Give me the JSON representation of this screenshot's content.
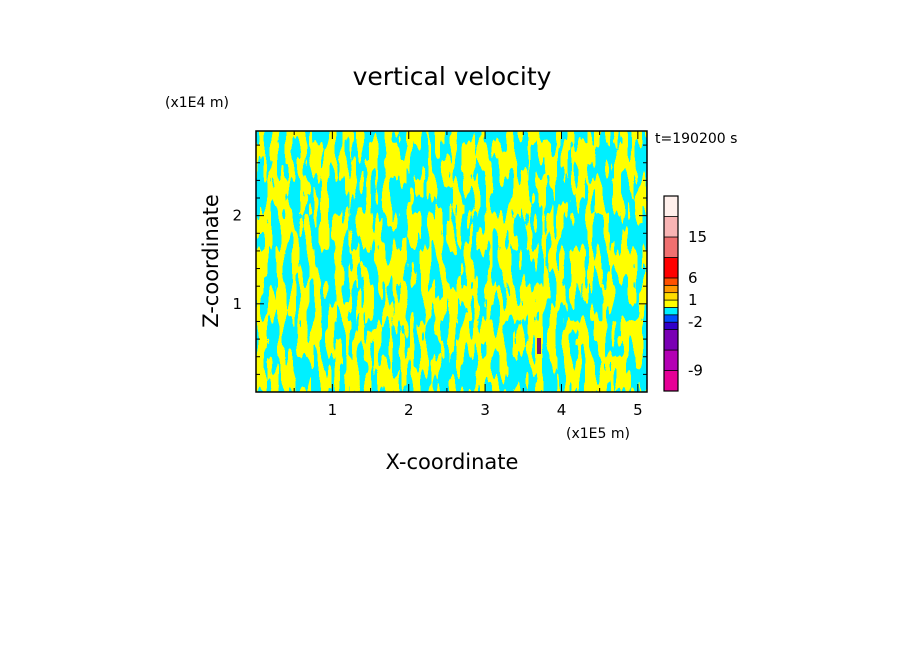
{
  "chart_data": {
    "type": "heatmap",
    "title": "vertical velocity",
    "xlabel": "X-coordinate",
    "ylabel": "Z-coordinate",
    "x_scale_label": "(x1E5 m)",
    "y_scale_label": "(x1E4 m)",
    "time_label": "t=190200 s",
    "xlim": [
      0,
      5.12
    ],
    "ylim": [
      0,
      2.96
    ],
    "x_ticks": [
      1,
      2,
      3,
      4,
      5
    ],
    "x_tick_labels": [
      "1",
      "2",
      "3",
      "4",
      "5"
    ],
    "y_ticks": [
      1,
      2
    ],
    "y_tick_labels": [
      "1",
      "2"
    ],
    "field_colors": {
      "negative": "#00f0ff",
      "positive": "#ffff00",
      "anomaly": "#7d1a6e"
    },
    "colorbar": {
      "levels": [
        -12,
        -9,
        -6,
        -4,
        -2,
        -1,
        0,
        1,
        2,
        4,
        6,
        9,
        15,
        25
      ],
      "tick_values": [
        -9,
        -2,
        1,
        6,
        15
      ],
      "tick_labels": [
        "-9",
        "-2",
        "1",
        "6",
        "15"
      ],
      "colors": [
        "#e60096",
        "#b400b4",
        "#7a00b4",
        "#3200c8",
        "#0050ff",
        "#00f0ff",
        "#ffff00",
        "#ffdd00",
        "#ff9900",
        "#ff5000",
        "#ff0000",
        "#f07070",
        "#f8b4b4",
        "#fff0ec"
      ]
    }
  }
}
